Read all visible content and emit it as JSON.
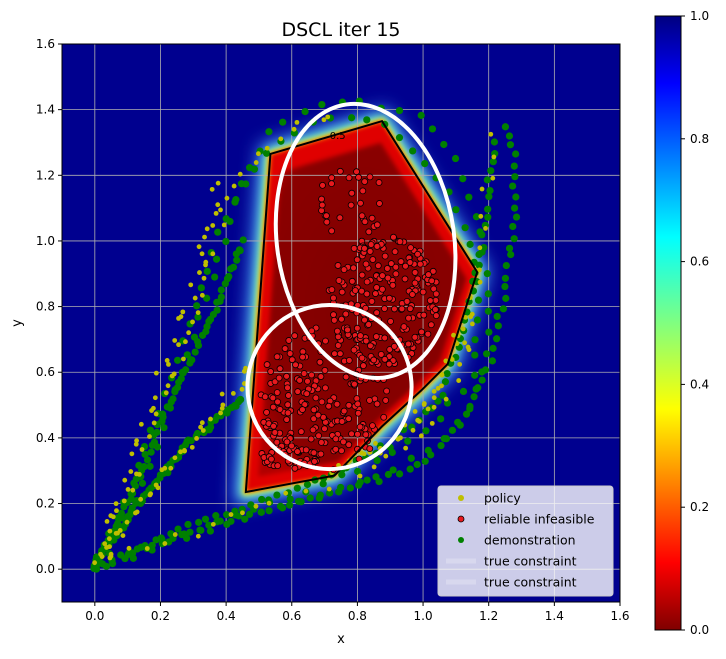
{
  "chart_data": {
    "type": "scatter",
    "title": "DSCL iter 15",
    "xlabel": "x",
    "ylabel": "y",
    "xlim": [
      -0.1,
      1.6
    ],
    "ylim": [
      -0.1,
      1.6
    ],
    "xticks": [
      "0.0",
      "0.2",
      "0.4",
      "0.6",
      "0.8",
      "1.0",
      "1.2",
      "1.4",
      "1.6"
    ],
    "yticks": [
      "0.0",
      "0.2",
      "0.4",
      "0.6",
      "0.8",
      "1.0",
      "1.2",
      "1.4",
      "1.6"
    ],
    "grid": true,
    "background_colormap": "jet_r",
    "colorbar": {
      "range": [
        0.0,
        1.0
      ],
      "ticks": [
        "0.0",
        "0.2",
        "0.4",
        "0.6",
        "0.8",
        "1.0"
      ]
    },
    "contour_label": "0.5",
    "learned_region_polygon": [
      [
        0.535,
        1.265
      ],
      [
        0.875,
        1.365
      ],
      [
        1.165,
        0.905
      ],
      [
        1.075,
        0.625
      ],
      [
        0.995,
        0.545
      ],
      [
        0.875,
        0.435
      ],
      [
        0.73,
        0.285
      ],
      [
        0.46,
        0.235
      ]
    ],
    "true_constraints": [
      {
        "type": "ellipse",
        "center": [
          0.825,
          1.0
        ],
        "rx": 0.27,
        "ry": 0.42,
        "tilt_deg": -8
      },
      {
        "type": "ellipse",
        "center": [
          0.715,
          0.555
        ],
        "rx": 0.25,
        "ry": 0.25,
        "tilt_deg": 0
      }
    ],
    "series_styles": [
      {
        "name": "policy",
        "color": "#bfbf00"
      },
      {
        "name": "reliable infeasible",
        "color": "#e8191e",
        "edge": "#000000"
      },
      {
        "name": "demonstration",
        "color": "#008000"
      }
    ],
    "legend": {
      "location": "lower right",
      "entries": [
        {
          "label": "policy",
          "marker": "dot",
          "color": "#bfbf00"
        },
        {
          "label": "reliable infeasible",
          "marker": "dot-edge",
          "color": "#e8191e"
        },
        {
          "label": "demonstration",
          "marker": "dot",
          "color": "#008000"
        },
        {
          "label": "true constraint",
          "marker": "line",
          "color": "#ffffff"
        },
        {
          "label": "true constraint",
          "marker": "line",
          "color": "#ffffff"
        }
      ]
    },
    "demonstration_paths": [
      [
        [
          0.0,
          0.0
        ],
        [
          0.1,
          0.15
        ],
        [
          0.2,
          0.4
        ],
        [
          0.3,
          0.7
        ],
        [
          0.38,
          0.95
        ],
        [
          0.45,
          1.18
        ],
        [
          0.55,
          1.35
        ],
        [
          0.7,
          1.42
        ],
        [
          0.85,
          1.42
        ],
        [
          1.0,
          1.38
        ],
        [
          1.1,
          1.25
        ],
        [
          1.17,
          1.05
        ],
        [
          1.2,
          0.85
        ],
        [
          1.2,
          0.68
        ],
        [
          1.15,
          0.5
        ],
        [
          1.05,
          0.38
        ],
        [
          0.85,
          0.28
        ],
        [
          0.6,
          0.2
        ],
        [
          0.3,
          0.1
        ],
        [
          0.0,
          0.0
        ]
      ],
      [
        [
          0.0,
          0.0
        ],
        [
          0.08,
          0.18
        ],
        [
          0.18,
          0.45
        ],
        [
          0.28,
          0.72
        ],
        [
          0.35,
          0.95
        ],
        [
          0.42,
          1.12
        ],
        [
          0.55,
          1.3
        ],
        [
          0.7,
          1.38
        ],
        [
          0.85,
          1.38
        ],
        [
          0.95,
          1.3
        ],
        [
          1.08,
          1.15
        ],
        [
          1.15,
          0.98
        ],
        [
          1.18,
          0.8
        ],
        [
          1.15,
          0.6
        ],
        [
          1.05,
          0.45
        ],
        [
          0.85,
          0.32
        ],
        [
          0.6,
          0.22
        ],
        [
          0.3,
          0.12
        ],
        [
          0.0,
          0.0
        ]
      ],
      [
        [
          0.0,
          0.0
        ],
        [
          0.1,
          0.2
        ],
        [
          0.2,
          0.45
        ],
        [
          0.3,
          0.65
        ],
        [
          0.38,
          0.82
        ],
        [
          0.43,
          0.95
        ],
        [
          0.45,
          1.0
        ]
      ],
      [
        [
          0.0,
          0.02
        ],
        [
          0.15,
          0.22
        ],
        [
          0.28,
          0.38
        ],
        [
          0.4,
          0.48
        ],
        [
          0.45,
          0.52
        ]
      ],
      [
        [
          0.0,
          0.0
        ],
        [
          0.2,
          0.08
        ],
        [
          0.4,
          0.15
        ],
        [
          0.6,
          0.2
        ],
        [
          0.8,
          0.25
        ],
        [
          1.0,
          0.32
        ],
        [
          1.12,
          0.45
        ],
        [
          1.2,
          0.62
        ],
        [
          1.25,
          0.85
        ],
        [
          1.28,
          1.05
        ],
        [
          1.28,
          1.25
        ],
        [
          1.25,
          1.35
        ]
      ],
      [
        [
          0.0,
          0.0
        ],
        [
          0.3,
          0.14
        ],
        [
          0.5,
          0.2
        ],
        [
          0.7,
          0.28
        ],
        [
          0.9,
          0.38
        ],
        [
          1.05,
          0.52
        ],
        [
          1.12,
          0.72
        ],
        [
          1.17,
          0.95
        ],
        [
          1.2,
          1.15
        ],
        [
          1.22,
          1.3
        ]
      ]
    ],
    "policy_paths": [
      [
        [
          0.02,
          0.05
        ],
        [
          0.1,
          0.25
        ],
        [
          0.2,
          0.5
        ],
        [
          0.3,
          0.75
        ],
        [
          0.36,
          0.95
        ],
        [
          0.42,
          1.15
        ],
        [
          0.5,
          1.28
        ],
        [
          0.6,
          1.35
        ],
        [
          0.72,
          1.38
        ]
      ],
      [
        [
          0.02,
          0.03
        ],
        [
          0.08,
          0.22
        ],
        [
          0.15,
          0.45
        ],
        [
          0.25,
          0.7
        ],
        [
          0.32,
          0.9
        ],
        [
          0.35,
          1.05
        ],
        [
          0.38,
          1.18
        ]
      ],
      [
        [
          0.02,
          0.02
        ],
        [
          0.15,
          0.22
        ],
        [
          0.3,
          0.4
        ],
        [
          0.4,
          0.52
        ],
        [
          0.47,
          0.6
        ]
      ],
      [
        [
          0.05,
          0.05
        ],
        [
          0.25,
          0.1
        ],
        [
          0.45,
          0.18
        ],
        [
          0.65,
          0.24
        ],
        [
          0.85,
          0.32
        ],
        [
          1.0,
          0.42
        ],
        [
          1.08,
          0.55
        ],
        [
          1.12,
          0.72
        ],
        [
          1.17,
          0.95
        ],
        [
          1.2,
          1.15
        ],
        [
          1.22,
          1.3
        ]
      ],
      [
        [
          0.75,
          0.32
        ],
        [
          0.9,
          0.38
        ],
        [
          1.0,
          0.48
        ],
        [
          1.08,
          0.62
        ],
        [
          1.15,
          0.78
        ]
      ]
    ],
    "infeasible_clusters": [
      {
        "center": [
          0.7,
          0.52
        ],
        "rx": 0.2,
        "ry": 0.22,
        "count": 200
      },
      {
        "center": [
          0.88,
          0.82
        ],
        "rx": 0.17,
        "ry": 0.2,
        "count": 200
      },
      {
        "center": [
          0.6,
          0.35
        ],
        "rx": 0.1,
        "ry": 0.05,
        "count": 35
      },
      {
        "center": [
          0.78,
          1.12
        ],
        "rx": 0.1,
        "ry": 0.12,
        "count": 30
      }
    ]
  }
}
